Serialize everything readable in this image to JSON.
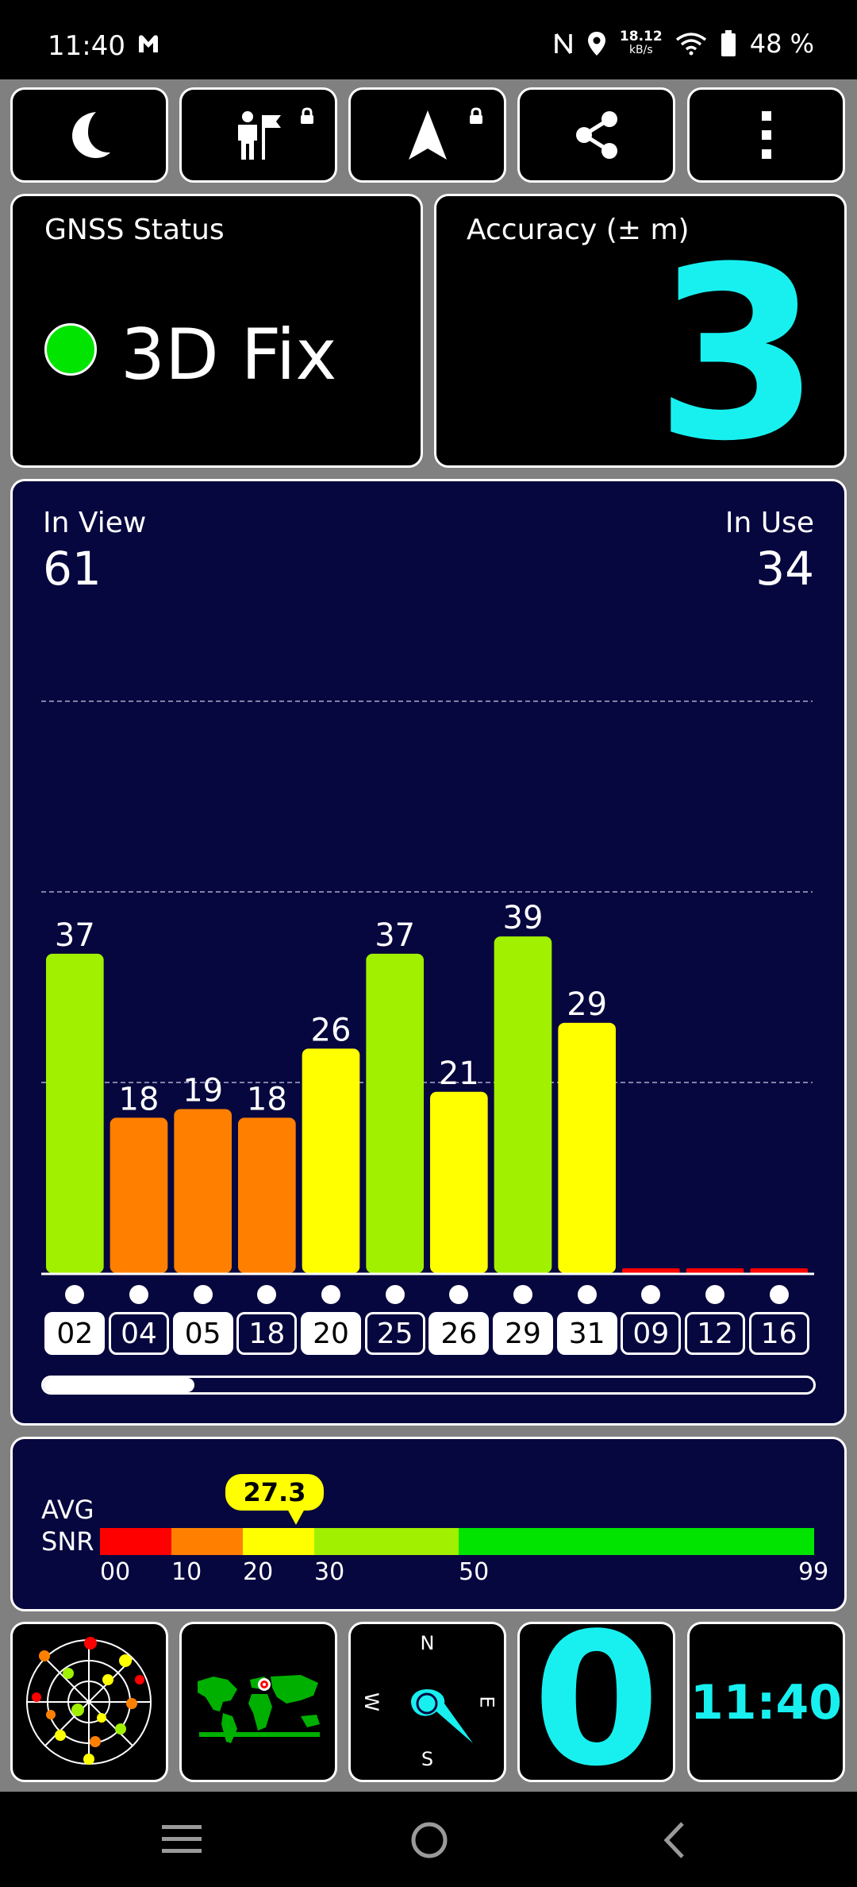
{
  "status_bar": {
    "time": "11:40",
    "speed_value": "18.12",
    "speed_unit": "kB/s",
    "battery_percent": "48 %",
    "icons": [
      "m-app-icon",
      "nfc-icon",
      "location-icon",
      "wifi-icon",
      "battery-icon"
    ]
  },
  "toolbar": {
    "buttons": [
      {
        "name": "night-mode-button",
        "icon": "moon-icon"
      },
      {
        "name": "mark-location-button",
        "icon": "person-flag-icon",
        "locked": true
      },
      {
        "name": "navigate-button",
        "icon": "navigation-arrow-icon",
        "locked": true
      },
      {
        "name": "share-button",
        "icon": "share-icon"
      },
      {
        "name": "more-menu-button",
        "icon": "more-vertical-icon"
      }
    ]
  },
  "gnss_status": {
    "label": "GNSS Status",
    "value": "3D Fix",
    "indicator_color": "#00e400"
  },
  "accuracy": {
    "label": "Accuracy (± m)",
    "value": "3",
    "color": "#18f0f0"
  },
  "satellites": {
    "in_view_label": "In View",
    "in_view_value": "61",
    "in_use_label": "In Use",
    "in_use_value": "34"
  },
  "chart_data": {
    "type": "bar",
    "categories": [
      "02",
      "04",
      "05",
      "18",
      "20",
      "25",
      "26",
      "29",
      "31",
      "09",
      "12",
      "16"
    ],
    "values": [
      37,
      18,
      19,
      18,
      26,
      37,
      21,
      39,
      29,
      0,
      0,
      0
    ],
    "value_labels": [
      "37",
      "18",
      "19",
      "18",
      "26",
      "37",
      "21",
      "39",
      "29",
      "",
      "",
      ""
    ],
    "in_use": [
      true,
      false,
      true,
      false,
      true,
      false,
      true,
      true,
      true,
      false,
      false,
      false
    ],
    "ylim": [
      0,
      60
    ],
    "grid": true,
    "colors": {
      "low": "#ff0000",
      "orange": "#ff8000",
      "yellow": "#ffff00",
      "lime": "#a0f000",
      "green": "#00e400"
    }
  },
  "snr": {
    "avg_label": "AVG",
    "snr_label": "SNR",
    "value": "27.3",
    "value_number": 27.3,
    "scale": [
      {
        "from": 0,
        "to": 10,
        "color": "#ff0000"
      },
      {
        "from": 10,
        "to": 20,
        "color": "#ff8000"
      },
      {
        "from": 20,
        "to": 30,
        "color": "#ffff00"
      },
      {
        "from": 30,
        "to": 50,
        "color": "#a0f000"
      },
      {
        "from": 50,
        "to": 99,
        "color": "#00e400"
      }
    ],
    "scale_labels": [
      "00",
      "10",
      "20",
      "30",
      "50",
      "99"
    ]
  },
  "bottom_tiles": {
    "skyplot_icon": "satellite-skyplot-icon",
    "map_icon": "world-map-icon",
    "compass": {
      "n": "N",
      "e": "E",
      "s": "S",
      "w": "W"
    },
    "speed": "0",
    "clock": "11:40"
  },
  "nav_bar": {
    "icons": [
      "menu-icon",
      "home-icon",
      "back-icon"
    ]
  }
}
